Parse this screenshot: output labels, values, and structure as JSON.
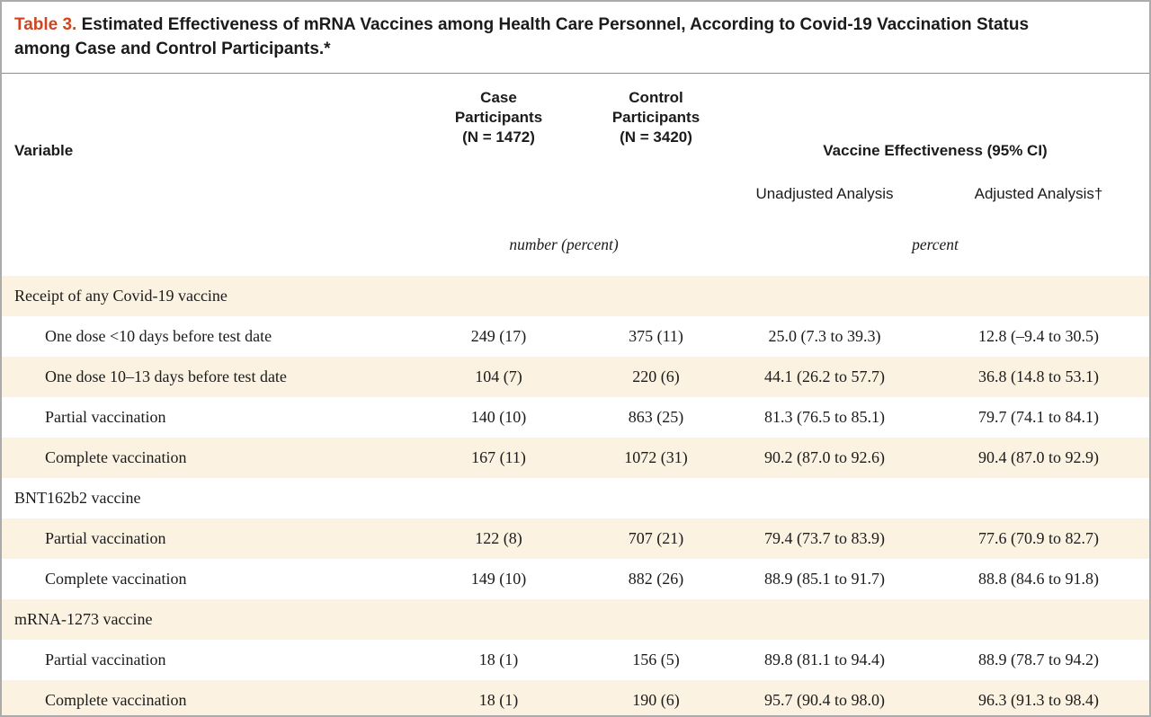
{
  "table": {
    "title_label": "Table 3.",
    "title_text": "Estimated Effectiveness of mRNA Vaccines among Health Care Personnel, According to Covid-19 Vaccination Status among Case and Control Participants.*",
    "columns": {
      "variable": "Variable",
      "case_lines": [
        "Case",
        "Participants",
        "(N = 1472)"
      ],
      "control_lines": [
        "Control",
        "Participants",
        "(N = 3420)"
      ],
      "effectiveness": "Vaccine Effectiveness (95% CI)",
      "unadjusted": "Unadjusted Analysis",
      "adjusted": "Adjusted Analysis†",
      "units_counts": "number (percent)",
      "units_effectiveness": "percent"
    },
    "colors": {
      "table_number_red": "#cf4520",
      "shaded_row": "#fbf2e2",
      "border_gray": "#ababab"
    },
    "rows": [
      {
        "type": "section",
        "shaded": true,
        "label": "Receipt of any Covid-19 vaccine"
      },
      {
        "type": "data",
        "shaded": false,
        "label": "One dose <10 days before test date",
        "case": "249 (17)",
        "control": "375 (11)",
        "unadjusted": "25.0 (7.3 to 39.3)",
        "adjusted": "12.8 (–9.4 to 30.5)"
      },
      {
        "type": "data",
        "shaded": true,
        "label": "One dose 10–13 days before test date",
        "case": "104 (7)",
        "control": "220 (6)",
        "unadjusted": "44.1 (26.2 to 57.7)",
        "adjusted": "36.8 (14.8 to 53.1)"
      },
      {
        "type": "data",
        "shaded": false,
        "label": "Partial vaccination",
        "case": "140 (10)",
        "control": "863 (25)",
        "unadjusted": "81.3 (76.5 to 85.1)",
        "adjusted": "79.7 (74.1 to 84.1)"
      },
      {
        "type": "data",
        "shaded": true,
        "label": "Complete vaccination",
        "case": "167 (11)",
        "control": "1072 (31)",
        "unadjusted": "90.2 (87.0 to 92.6)",
        "adjusted": "90.4 (87.0 to 92.9)"
      },
      {
        "type": "section",
        "shaded": false,
        "label": "BNT162b2 vaccine"
      },
      {
        "type": "data",
        "shaded": true,
        "label": "Partial vaccination",
        "case": "122 (8)",
        "control": "707 (21)",
        "unadjusted": "79.4 (73.7 to 83.9)",
        "adjusted": "77.6 (70.9 to 82.7)"
      },
      {
        "type": "data",
        "shaded": false,
        "label": "Complete vaccination",
        "case": "149 (10)",
        "control": "882 (26)",
        "unadjusted": "88.9 (85.1 to 91.7)",
        "adjusted": "88.8 (84.6 to 91.8)"
      },
      {
        "type": "section",
        "shaded": true,
        "label": "mRNA-1273 vaccine"
      },
      {
        "type": "data",
        "shaded": false,
        "label": "Partial vaccination",
        "case": "18 (1)",
        "control": "156 (5)",
        "unadjusted": "89.8 (81.1 to 94.4)",
        "adjusted": "88.9 (78.7 to 94.2)"
      },
      {
        "type": "data",
        "shaded": true,
        "label": "Complete vaccination",
        "case": "18 (1)",
        "control": "190 (6)",
        "unadjusted": "95.7 (90.4 to 98.0)",
        "adjusted": "96.3 (91.3 to 98.4)"
      }
    ]
  }
}
